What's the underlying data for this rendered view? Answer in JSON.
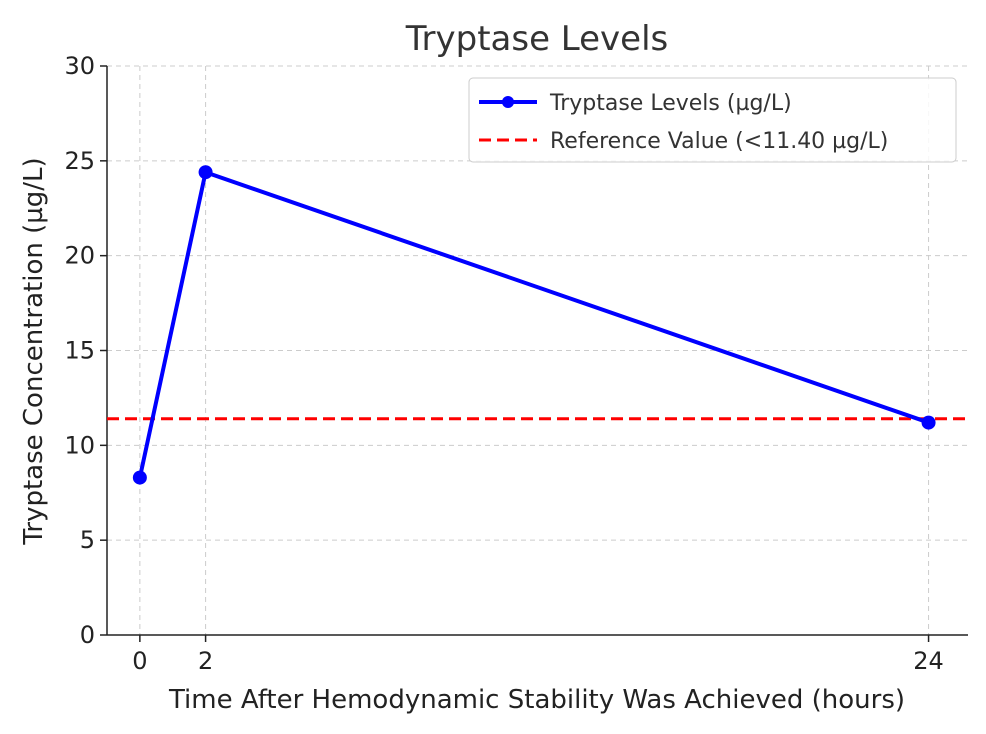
{
  "chart_data": {
    "type": "line",
    "title": "Tryptase Levels",
    "xlabel": "Time After Hemodynamic Stability Was Achieved (hours)",
    "ylabel": "Tryptase Concentration (µg/L)",
    "x": [
      0,
      2,
      24
    ],
    "x_ticks": [
      "0",
      "2",
      "24"
    ],
    "y_ticks": [
      "0",
      "5",
      "10",
      "15",
      "20",
      "25",
      "30"
    ],
    "xlim": [
      -1,
      25.2
    ],
    "ylim": [
      0,
      30
    ],
    "grid": true,
    "legend_position": "top-right",
    "series": [
      {
        "name": "Tryptase Levels (µg/L)",
        "values": [
          8.3,
          24.4,
          11.2
        ],
        "color": "#0000ff",
        "style": "solid-with-markers"
      }
    ],
    "reference_lines": [
      {
        "name": "Reference Value (<11.40 µg/L)",
        "value": 11.4,
        "color": "#ff0000",
        "style": "dashed"
      }
    ]
  }
}
